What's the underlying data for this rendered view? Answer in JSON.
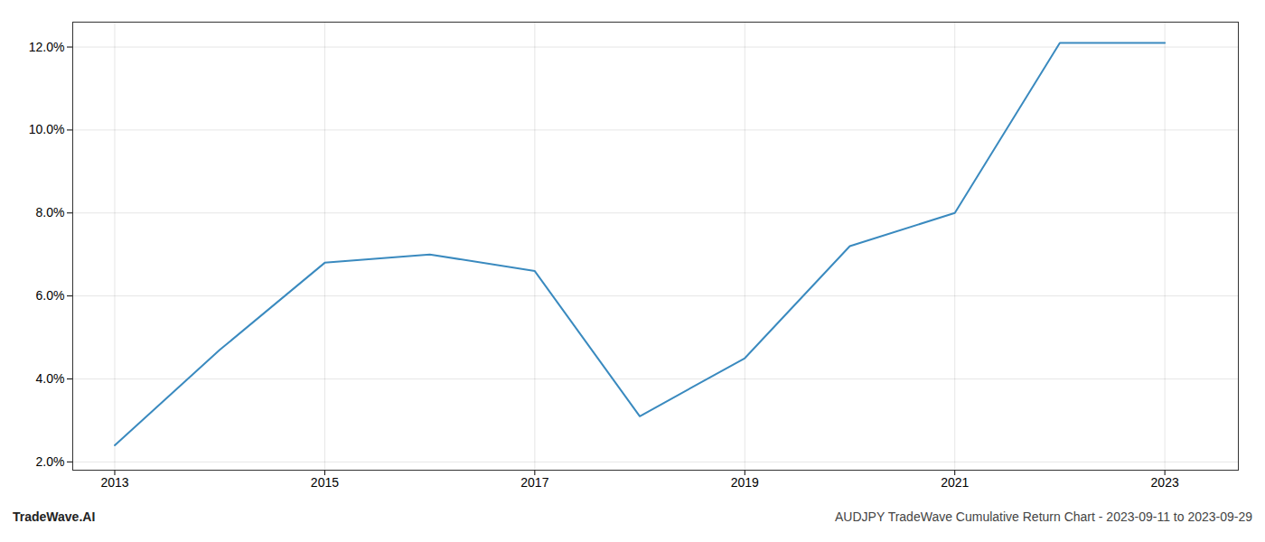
{
  "chart_data": {
    "type": "line",
    "x": [
      2013,
      2014,
      2015,
      2016,
      2017,
      2018,
      2019,
      2020,
      2021,
      2022,
      2023
    ],
    "values": [
      0.024,
      0.047,
      0.068,
      0.07,
      0.066,
      0.031,
      0.045,
      0.072,
      0.08,
      0.121,
      0.121
    ],
    "color": "#3a8abf",
    "xlim": [
      2012.6,
      2023.7
    ],
    "xticks": [
      2013,
      2015,
      2017,
      2019,
      2021,
      2023
    ],
    "ylim": [
      0.018,
      0.126
    ],
    "yticks": [
      {
        "value": 0.02,
        "label": "2.0%"
      },
      {
        "value": 0.04,
        "label": "4.0%"
      },
      {
        "value": 0.06,
        "label": "6.0%"
      },
      {
        "value": 0.08,
        "label": "8.0%"
      },
      {
        "value": 0.1,
        "label": "10.0%"
      },
      {
        "value": 0.12,
        "label": "12.0%"
      }
    ],
    "grid": true,
    "annotations": [
      "TradeWave.AI",
      "AUDJPY TradeWave Cumulative Return Chart - 2023-09-11 to 2023-09-29"
    ]
  }
}
